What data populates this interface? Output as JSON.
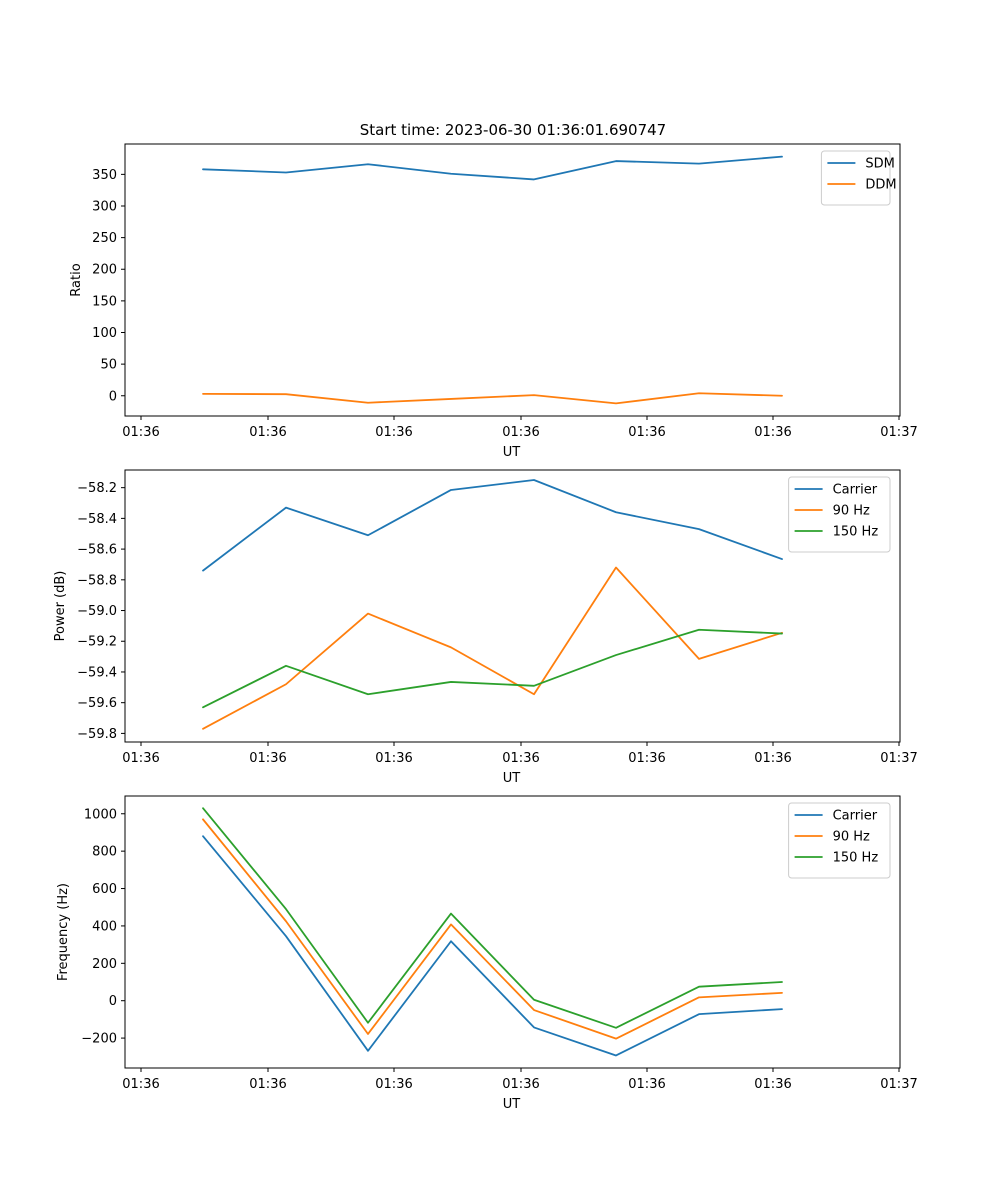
{
  "figure": {
    "title": "Start time: 2023-06-30 01:36:01.690747"
  },
  "chart_data": [
    {
      "type": "line",
      "title": "Start time: 2023-06-30 01:36:01.690747",
      "xlabel": "UT",
      "ylabel": "Ratio",
      "x_tick_labels": [
        "01:36",
        "01:36",
        "01:36",
        "01:36",
        "01:36",
        "01:36",
        "01:37"
      ],
      "y_ticks": [
        0,
        50,
        100,
        150,
        200,
        250,
        300,
        350
      ],
      "ylim": [
        -32,
        398
      ],
      "legend_position": "upper right",
      "grid": false,
      "series": [
        {
          "name": "SDM",
          "color": "#1f77b4",
          "values": [
            358,
            353,
            366,
            351,
            342,
            371,
            367,
            378
          ]
        },
        {
          "name": "DDM",
          "color": "#ff7f0e",
          "values": [
            3,
            2.5,
            -11,
            -5,
            1,
            -12,
            4,
            0
          ]
        }
      ]
    },
    {
      "type": "line",
      "title": "",
      "xlabel": "UT",
      "ylabel": "Power (dB)",
      "x_tick_labels": [
        "01:36",
        "01:36",
        "01:36",
        "01:36",
        "01:36",
        "01:36",
        "01:37"
      ],
      "y_ticks": [
        -59.8,
        -59.6,
        -59.4,
        -59.2,
        -59.0,
        -58.8,
        -58.6,
        -58.4,
        -58.2
      ],
      "y_tick_labels": [
        "−59.8",
        "−59.6",
        "−59.4",
        "−59.2",
        "−59.0",
        "−58.8",
        "−58.6",
        "−58.4",
        "−58.2"
      ],
      "ylim": [
        -59.856,
        -58.085
      ],
      "legend_position": "upper right",
      "grid": false,
      "series": [
        {
          "name": "Carrier",
          "color": "#1f77b4",
          "values": [
            -58.74,
            -58.33,
            -58.51,
            -58.215,
            -58.15,
            -58.36,
            -58.47,
            -58.665
          ]
        },
        {
          "name": "90 Hz",
          "color": "#ff7f0e",
          "values": [
            -59.77,
            -59.48,
            -59.02,
            -59.24,
            -59.545,
            -58.72,
            -59.315,
            -59.145
          ]
        },
        {
          "name": "150 Hz",
          "color": "#2ca02c",
          "values": [
            -59.63,
            -59.36,
            -59.545,
            -59.465,
            -59.49,
            -59.29,
            -59.125,
            -59.15
          ]
        }
      ]
    },
    {
      "type": "line",
      "title": "",
      "xlabel": "UT",
      "ylabel": "Frequency (Hz)",
      "x_tick_labels": [
        "01:36",
        "01:36",
        "01:36",
        "01:36",
        "01:36",
        "01:36",
        "01:37"
      ],
      "y_ticks": [
        -200,
        0,
        200,
        400,
        600,
        800,
        1000
      ],
      "y_tick_labels": [
        "−200",
        "0",
        "200",
        "400",
        "600",
        "800",
        "1000"
      ],
      "ylim": [
        -360,
        1095
      ],
      "legend_position": "upper right",
      "grid": false,
      "series": [
        {
          "name": "Carrier",
          "color": "#1f77b4",
          "values": [
            880,
            345,
            -268,
            318,
            -143,
            -293,
            -72,
            -45
          ]
        },
        {
          "name": "90 Hz",
          "color": "#ff7f0e",
          "values": [
            970,
            425,
            -178,
            408,
            -50,
            -203,
            18,
            42
          ]
        },
        {
          "name": "150 Hz",
          "color": "#2ca02c",
          "values": [
            1030,
            490,
            -118,
            466,
            5,
            -145,
            75,
            100
          ]
        }
      ]
    }
  ]
}
